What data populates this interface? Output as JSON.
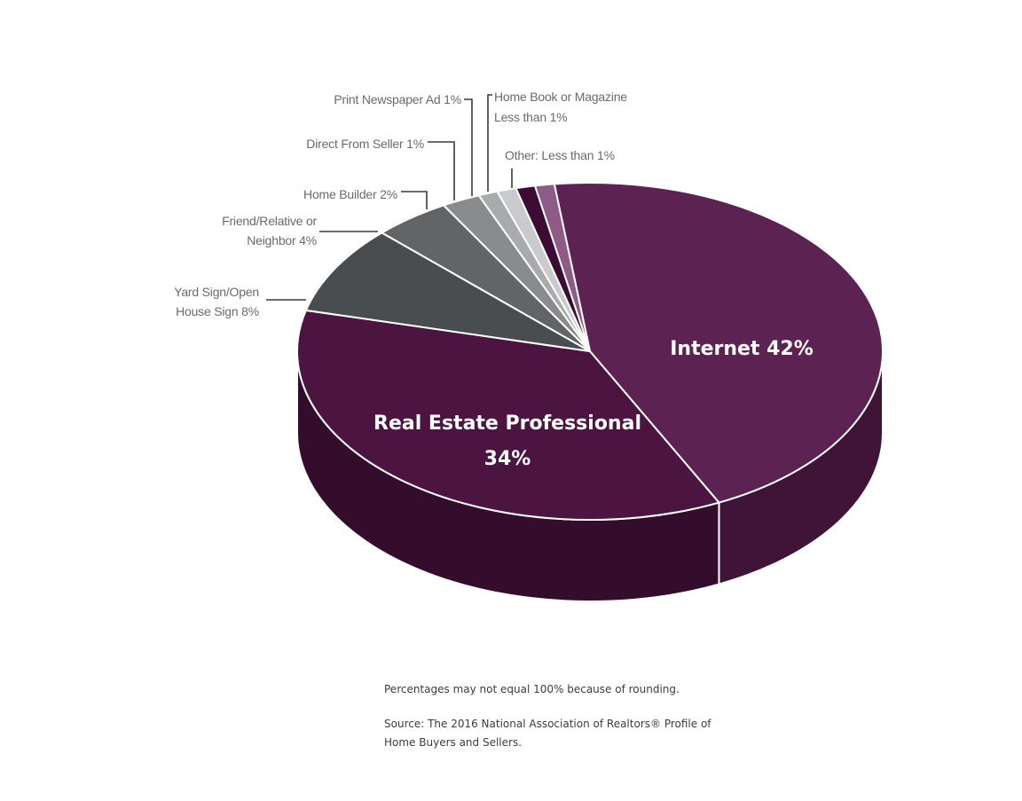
{
  "chart_data": {
    "type": "pie",
    "title": "",
    "slices": [
      {
        "label": "Internet",
        "display": [
          "Internet 42%"
        ],
        "value": 42,
        "color": "#5c2352",
        "side": "#3f1437"
      },
      {
        "label": "Real Estate Professional",
        "display": [
          "Real Estate Professional",
          "34%"
        ],
        "value": 34,
        "color": "#4b1441",
        "side": "#340d2d"
      },
      {
        "label": "Yard Sign/Open House Sign",
        "display": [
          "Yard Sign/Open",
          "House Sign 8%"
        ],
        "value": 8,
        "color": "#4a4d50",
        "side": "#333538"
      },
      {
        "label": "Friend/Relative or Neighbor",
        "display": [
          "Friend/Relative or",
          "Neighbor 4%"
        ],
        "value": 4,
        "color": "#636466",
        "side": "#48494b"
      },
      {
        "label": "Home Builder",
        "display": [
          "Home Builder 2%"
        ],
        "value": 2,
        "color": "#8a8b8d",
        "side": "#6a6b6d"
      },
      {
        "label": "Direct From Seller",
        "display": [
          "Direct From Seller 1%"
        ],
        "value": 1,
        "color": "#a9aaac",
        "side": "#8a8b8d"
      },
      {
        "label": "Print Newspaper Ad",
        "display": [
          "Print Newspaper Ad 1%"
        ],
        "value": 1,
        "color": "#c9cacc",
        "side": "#a9aaac"
      },
      {
        "label": "Home Book or Magazine",
        "display": [
          "Home Book or Magazine",
          "Less than 1%"
        ],
        "value": 1,
        "color": "#3d0c35",
        "side": "#2a0824"
      },
      {
        "label": "Other",
        "display": [
          "Other: Less than 1%"
        ],
        "value": 1,
        "color": "#8e5a86",
        "side": "#6a3f63"
      }
    ],
    "legend": "none (callout labels)"
  },
  "notes": {
    "rounding": "Percentages may not equal 100% because of rounding.",
    "source": "Source: The 2016 National Association of Realtors® Profile of Home Buyers and Sellers."
  }
}
